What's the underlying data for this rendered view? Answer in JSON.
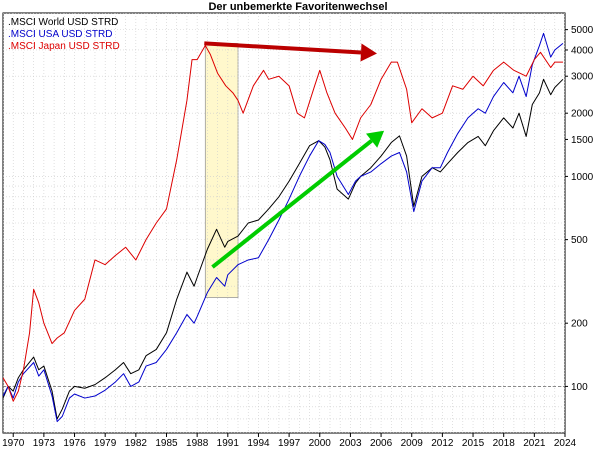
{
  "chart_data": {
    "type": "line",
    "title": "Der unbemerkte Favoritenwechsel",
    "xlabel": "",
    "ylabel": "",
    "y_scale": "log",
    "xlim": [
      1969.0,
      2024.0
    ],
    "ylim": [
      60,
      6000
    ],
    "grid": true,
    "legend_position": "top-left",
    "x_ticks": [
      "1970",
      "1973",
      "1976",
      "1979",
      "1982",
      "1985",
      "1988",
      "1991",
      "1994",
      "1997",
      "2000",
      "2003",
      "2006",
      "2009",
      "2012",
      "2015",
      "2018",
      "2021",
      "2024"
    ],
    "y_ticks": [
      100,
      200,
      500,
      1000,
      1500,
      2000,
      3000,
      4000,
      5000
    ],
    "reference_line_y": 100,
    "highlight_range": {
      "x": [
        1988.8,
        1992.0
      ],
      "y": [
        265,
        4300
      ],
      "color": "#fff8cc"
    },
    "series": [
      {
        "name": ".MSCI World USD STRD",
        "color": "#000000",
        "x": [
          1969.0,
          1969.5,
          1970.0,
          1970.5,
          1971.0,
          1972.0,
          1972.5,
          1973.0,
          1973.8,
          1974.3,
          1974.8,
          1975.5,
          1976.0,
          1977.0,
          1978.0,
          1979.0,
          1980.0,
          1980.8,
          1981.5,
          1982.3,
          1983.0,
          1984.0,
          1985.0,
          1986.0,
          1987.0,
          1987.7,
          1988.0,
          1989.0,
          1989.9,
          1990.7,
          1991.0,
          1992.0,
          1993.0,
          1994.0,
          1995.0,
          1996.0,
          1997.0,
          1998.0,
          1999.0,
          1999.9,
          2000.5,
          2001.0,
          2001.7,
          2002.8,
          2003.5,
          2004.0,
          2005.0,
          2006.0,
          2007.0,
          2007.8,
          2008.5,
          2009.2,
          2010.0,
          2011.0,
          2011.8,
          2012.5,
          2013.5,
          2014.5,
          2015.5,
          2016.2,
          2017.0,
          2018.0,
          2018.9,
          2019.5,
          2020.2,
          2020.8,
          2021.5,
          2021.9,
          2022.6,
          2023.0,
          2023.8
        ],
        "values": [
          88,
          100,
          95,
          110,
          120,
          138,
          120,
          125,
          95,
          70,
          78,
          95,
          100,
          98,
          102,
          110,
          120,
          130,
          115,
          120,
          140,
          150,
          180,
          260,
          350,
          300,
          330,
          450,
          560,
          460,
          490,
          520,
          600,
          620,
          700,
          800,
          950,
          1150,
          1400,
          1480,
          1380,
          1200,
          870,
          780,
          930,
          1000,
          1100,
          1250,
          1450,
          1560,
          1250,
          720,
          1000,
          1100,
          1050,
          1150,
          1300,
          1450,
          1550,
          1400,
          1650,
          1900,
          1700,
          2000,
          1550,
          2200,
          2500,
          2900,
          2450,
          2650,
          2900
        ]
      },
      {
        "name": ".MSCI USA USD STRD",
        "color": "#0000cc",
        "x": [
          1969.0,
          1969.5,
          1970.0,
          1970.5,
          1971.0,
          1972.0,
          1972.5,
          1973.0,
          1973.8,
          1974.3,
          1974.8,
          1975.5,
          1976.0,
          1977.0,
          1978.0,
          1979.0,
          1980.0,
          1980.8,
          1981.5,
          1982.3,
          1983.0,
          1984.0,
          1985.0,
          1986.0,
          1987.0,
          1987.7,
          1988.0,
          1989.0,
          1989.9,
          1990.7,
          1991.0,
          1992.0,
          1993.0,
          1994.0,
          1995.0,
          1996.0,
          1997.0,
          1998.0,
          1999.0,
          1999.9,
          2000.5,
          2001.0,
          2001.7,
          2002.8,
          2003.5,
          2004.0,
          2005.0,
          2006.0,
          2007.0,
          2007.8,
          2008.5,
          2009.2,
          2010.0,
          2011.0,
          2011.8,
          2012.5,
          2013.5,
          2014.5,
          2015.5,
          2016.2,
          2017.0,
          2018.0,
          2018.9,
          2019.5,
          2020.2,
          2020.8,
          2021.5,
          2021.9,
          2022.6,
          2023.0,
          2023.8
        ],
        "values": [
          90,
          100,
          88,
          105,
          115,
          130,
          112,
          120,
          90,
          68,
          72,
          88,
          92,
          88,
          90,
          96,
          105,
          115,
          100,
          105,
          125,
          130,
          150,
          180,
          220,
          200,
          215,
          280,
          330,
          300,
          340,
          380,
          400,
          410,
          500,
          620,
          780,
          1000,
          1250,
          1480,
          1420,
          1300,
          1000,
          820,
          950,
          1000,
          1050,
          1150,
          1250,
          1300,
          1050,
          680,
          950,
          1100,
          1100,
          1300,
          1600,
          1900,
          2100,
          2000,
          2400,
          2800,
          2500,
          3000,
          2400,
          3400,
          4200,
          4800,
          3700,
          4000,
          4300
        ]
      },
      {
        "name": ".MSCI Japan USD STRD",
        "color": "#dd0000",
        "x": [
          1969.0,
          1969.5,
          1970.0,
          1970.5,
          1971.0,
          1971.6,
          1972.0,
          1972.5,
          1973.0,
          1973.8,
          1974.3,
          1975.0,
          1976.0,
          1977.0,
          1978.0,
          1979.0,
          1980.0,
          1981.0,
          1982.0,
          1983.0,
          1984.0,
          1985.0,
          1986.0,
          1987.0,
          1987.5,
          1988.0,
          1988.8,
          1989.3,
          1990.0,
          1990.8,
          1991.5,
          1992.0,
          1992.5,
          1993.5,
          1994.5,
          1995.0,
          1996.0,
          1997.0,
          1997.8,
          1998.5,
          1999.5,
          2000.0,
          2000.7,
          2001.5,
          2002.5,
          2003.2,
          2004.0,
          2005.0,
          2006.0,
          2007.0,
          2007.6,
          2008.5,
          2009.0,
          2010.0,
          2011.0,
          2012.0,
          2013.0,
          2014.0,
          2015.0,
          2016.0,
          2017.0,
          2018.0,
          2019.0,
          2020.2,
          2021.0,
          2021.6,
          2022.6,
          2023.0,
          2023.8
        ],
        "values": [
          110,
          100,
          85,
          95,
          120,
          180,
          290,
          250,
          200,
          160,
          170,
          180,
          230,
          260,
          400,
          380,
          420,
          460,
          400,
          500,
          600,
          700,
          1200,
          2300,
          3600,
          3600,
          4200,
          3800,
          3100,
          2700,
          2500,
          2300,
          2000,
          2700,
          3200,
          2900,
          3000,
          2700,
          2000,
          1900,
          2700,
          3200,
          2500,
          2000,
          1700,
          1500,
          1900,
          2200,
          2900,
          3500,
          3500,
          2600,
          1800,
          2100,
          1900,
          2000,
          2700,
          2600,
          3000,
          2700,
          3200,
          3500,
          3200,
          3000,
          3600,
          3900,
          3300,
          3500,
          3500
        ]
      }
    ],
    "annotations": [
      {
        "type": "arrow",
        "color": "#bb0000",
        "from": {
          "x": 1988.7,
          "y": 4300
        },
        "to": {
          "x": 2005.6,
          "y": 3850
        }
      },
      {
        "type": "arrow",
        "color": "#00cc00",
        "from": {
          "x": 1989.5,
          "y": 370
        },
        "to": {
          "x": 2006.3,
          "y": 1650
        }
      }
    ]
  }
}
